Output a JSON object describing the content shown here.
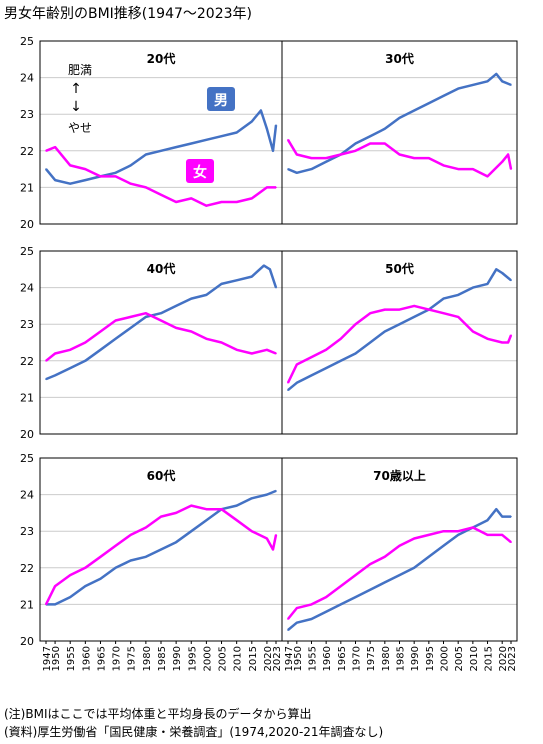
{
  "title": "男女年齢別のBMI推移(1947～2023年)",
  "notes": [
    "(注)BMIはここでは平均体重と平均身長のデータから算出",
    "(資料)厚生労働省「国民健康・栄養調査」(1974,2020-21年調査なし)"
  ],
  "legend_hint": {
    "up": "肥満",
    "up_arrow": "↑",
    "down_arrow": "↓",
    "down": "やせ"
  },
  "colors": {
    "male": "#4472c4",
    "female": "#ff00ff",
    "grid": "#cccccc",
    "axis": "#000000"
  },
  "x_ticks": [
    "1947",
    "1950",
    "1955",
    "1960",
    "1965",
    "1970",
    "1975",
    "1980",
    "1985",
    "1990",
    "1995",
    "2000",
    "2005",
    "2010",
    "2015",
    "2020",
    "2023"
  ],
  "chart_data": [
    {
      "type": "line",
      "title": "20代",
      "ylim": [
        20,
        25
      ],
      "yticks": [
        20,
        21,
        22,
        23,
        24,
        25
      ],
      "x_range": [
        1947,
        2023
      ],
      "series": [
        {
          "name": "男",
          "key": "male",
          "points": [
            [
              1947,
              21.5
            ],
            [
              1950,
              21.2
            ],
            [
              1955,
              21.1
            ],
            [
              1960,
              21.2
            ],
            [
              1965,
              21.3
            ],
            [
              1970,
              21.4
            ],
            [
              1975,
              21.6
            ],
            [
              1980,
              21.9
            ],
            [
              1985,
              22.0
            ],
            [
              1990,
              22.1
            ],
            [
              1995,
              22.2
            ],
            [
              2000,
              22.3
            ],
            [
              2005,
              22.4
            ],
            [
              2010,
              22.5
            ],
            [
              2015,
              22.8
            ],
            [
              2018,
              23.1
            ],
            [
              2020,
              22.6
            ],
            [
              2022,
              22.0
            ],
            [
              2023,
              22.7
            ]
          ]
        },
        {
          "name": "女",
          "key": "female",
          "points": [
            [
              1947,
              22.0
            ],
            [
              1950,
              22.1
            ],
            [
              1955,
              21.6
            ],
            [
              1960,
              21.5
            ],
            [
              1965,
              21.3
            ],
            [
              1970,
              21.3
            ],
            [
              1975,
              21.1
            ],
            [
              1980,
              21.0
            ],
            [
              1985,
              20.8
            ],
            [
              1990,
              20.6
            ],
            [
              1995,
              20.7
            ],
            [
              2000,
              20.5
            ],
            [
              2005,
              20.6
            ],
            [
              2010,
              20.6
            ],
            [
              2015,
              20.7
            ],
            [
              2020,
              21.0
            ],
            [
              2023,
              21.0
            ]
          ]
        }
      ]
    },
    {
      "type": "line",
      "title": "30代",
      "ylim": [
        20,
        25
      ],
      "yticks": [
        20,
        21,
        22,
        23,
        24,
        25
      ],
      "x_range": [
        1947,
        2023
      ],
      "series": [
        {
          "key": "male",
          "points": [
            [
              1947,
              21.5
            ],
            [
              1950,
              21.4
            ],
            [
              1955,
              21.5
            ],
            [
              1960,
              21.7
            ],
            [
              1965,
              21.9
            ],
            [
              1970,
              22.2
            ],
            [
              1975,
              22.4
            ],
            [
              1980,
              22.6
            ],
            [
              1985,
              22.9
            ],
            [
              1990,
              23.1
            ],
            [
              1995,
              23.3
            ],
            [
              2000,
              23.5
            ],
            [
              2005,
              23.7
            ],
            [
              2010,
              23.8
            ],
            [
              2015,
              23.9
            ],
            [
              2018,
              24.1
            ],
            [
              2020,
              23.9
            ],
            [
              2023,
              23.8
            ]
          ]
        },
        {
          "key": "female",
          "points": [
            [
              1947,
              22.3
            ],
            [
              1950,
              21.9
            ],
            [
              1955,
              21.8
            ],
            [
              1960,
              21.8
            ],
            [
              1965,
              21.9
            ],
            [
              1970,
              22.0
            ],
            [
              1975,
              22.2
            ],
            [
              1980,
              22.2
            ],
            [
              1985,
              21.9
            ],
            [
              1990,
              21.8
            ],
            [
              1995,
              21.8
            ],
            [
              2000,
              21.6
            ],
            [
              2005,
              21.5
            ],
            [
              2010,
              21.5
            ],
            [
              2015,
              21.3
            ],
            [
              2020,
              21.7
            ],
            [
              2022,
              21.9
            ],
            [
              2023,
              21.5
            ]
          ]
        }
      ]
    },
    {
      "type": "line",
      "title": "40代",
      "ylim": [
        20,
        25
      ],
      "yticks": [
        20,
        21,
        22,
        23,
        24,
        25
      ],
      "x_range": [
        1947,
        2023
      ],
      "series": [
        {
          "key": "male",
          "points": [
            [
              1947,
              21.5
            ],
            [
              1950,
              21.6
            ],
            [
              1955,
              21.8
            ],
            [
              1960,
              22.0
            ],
            [
              1965,
              22.3
            ],
            [
              1970,
              22.6
            ],
            [
              1975,
              22.9
            ],
            [
              1980,
              23.2
            ],
            [
              1985,
              23.3
            ],
            [
              1990,
              23.5
            ],
            [
              1995,
              23.7
            ],
            [
              2000,
              23.8
            ],
            [
              2005,
              24.1
            ],
            [
              2010,
              24.2
            ],
            [
              2015,
              24.3
            ],
            [
              2019,
              24.6
            ],
            [
              2021,
              24.5
            ],
            [
              2023,
              24.0
            ]
          ]
        },
        {
          "key": "female",
          "points": [
            [
              1947,
              22.0
            ],
            [
              1950,
              22.2
            ],
            [
              1955,
              22.3
            ],
            [
              1960,
              22.5
            ],
            [
              1965,
              22.8
            ],
            [
              1970,
              23.1
            ],
            [
              1975,
              23.2
            ],
            [
              1980,
              23.3
            ],
            [
              1985,
              23.1
            ],
            [
              1990,
              22.9
            ],
            [
              1995,
              22.8
            ],
            [
              2000,
              22.6
            ],
            [
              2005,
              22.5
            ],
            [
              2010,
              22.3
            ],
            [
              2015,
              22.2
            ],
            [
              2020,
              22.3
            ],
            [
              2023,
              22.2
            ]
          ]
        }
      ]
    },
    {
      "type": "line",
      "title": "50代",
      "ylim": [
        20,
        25
      ],
      "yticks": [
        20,
        21,
        22,
        23,
        24,
        25
      ],
      "x_range": [
        1947,
        2023
      ],
      "series": [
        {
          "key": "male",
          "points": [
            [
              1947,
              21.2
            ],
            [
              1950,
              21.4
            ],
            [
              1955,
              21.6
            ],
            [
              1960,
              21.8
            ],
            [
              1965,
              22.0
            ],
            [
              1970,
              22.2
            ],
            [
              1975,
              22.5
            ],
            [
              1980,
              22.8
            ],
            [
              1985,
              23.0
            ],
            [
              1990,
              23.2
            ],
            [
              1995,
              23.4
            ],
            [
              2000,
              23.7
            ],
            [
              2005,
              23.8
            ],
            [
              2010,
              24.0
            ],
            [
              2015,
              24.1
            ],
            [
              2018,
              24.5
            ],
            [
              2020,
              24.4
            ],
            [
              2023,
              24.2
            ]
          ]
        },
        {
          "key": "female",
          "points": [
            [
              1947,
              21.4
            ],
            [
              1950,
              21.9
            ],
            [
              1955,
              22.1
            ],
            [
              1960,
              22.3
            ],
            [
              1965,
              22.6
            ],
            [
              1970,
              23.0
            ],
            [
              1975,
              23.3
            ],
            [
              1980,
              23.4
            ],
            [
              1985,
              23.4
            ],
            [
              1990,
              23.5
            ],
            [
              1995,
              23.4
            ],
            [
              2000,
              23.3
            ],
            [
              2005,
              23.2
            ],
            [
              2010,
              22.8
            ],
            [
              2015,
              22.6
            ],
            [
              2020,
              22.5
            ],
            [
              2022,
              22.5
            ],
            [
              2023,
              22.7
            ]
          ]
        }
      ]
    },
    {
      "type": "line",
      "title": "60代",
      "ylim": [
        20,
        25
      ],
      "yticks": [
        20,
        21,
        22,
        23,
        24,
        25
      ],
      "x_range": [
        1947,
        2023
      ],
      "series": [
        {
          "key": "male",
          "points": [
            [
              1947,
              21.0
            ],
            [
              1950,
              21.0
            ],
            [
              1955,
              21.2
            ],
            [
              1960,
              21.5
            ],
            [
              1965,
              21.7
            ],
            [
              1970,
              22.0
            ],
            [
              1975,
              22.2
            ],
            [
              1980,
              22.3
            ],
            [
              1985,
              22.5
            ],
            [
              1990,
              22.7
            ],
            [
              1995,
              23.0
            ],
            [
              2000,
              23.3
            ],
            [
              2005,
              23.6
            ],
            [
              2010,
              23.7
            ],
            [
              2015,
              23.9
            ],
            [
              2020,
              24.0
            ],
            [
              2023,
              24.1
            ]
          ]
        },
        {
          "key": "female",
          "points": [
            [
              1947,
              21.0
            ],
            [
              1950,
              21.5
            ],
            [
              1955,
              21.8
            ],
            [
              1960,
              22.0
            ],
            [
              1965,
              22.3
            ],
            [
              1970,
              22.6
            ],
            [
              1975,
              22.9
            ],
            [
              1980,
              23.1
            ],
            [
              1985,
              23.4
            ],
            [
              1990,
              23.5
            ],
            [
              1995,
              23.7
            ],
            [
              2000,
              23.6
            ],
            [
              2005,
              23.6
            ],
            [
              2010,
              23.3
            ],
            [
              2015,
              23.0
            ],
            [
              2020,
              22.8
            ],
            [
              2022,
              22.5
            ],
            [
              2023,
              22.9
            ]
          ]
        }
      ]
    },
    {
      "type": "line",
      "title": "70歳以上",
      "ylim": [
        20,
        25
      ],
      "yticks": [
        20,
        21,
        22,
        23,
        24,
        25
      ],
      "x_range": [
        1947,
        2023
      ],
      "series": [
        {
          "key": "male",
          "points": [
            [
              1947,
              20.3
            ],
            [
              1950,
              20.5
            ],
            [
              1955,
              20.6
            ],
            [
              1960,
              20.8
            ],
            [
              1965,
              21.0
            ],
            [
              1970,
              21.2
            ],
            [
              1975,
              21.4
            ],
            [
              1980,
              21.6
            ],
            [
              1985,
              21.8
            ],
            [
              1990,
              22.0
            ],
            [
              1995,
              22.3
            ],
            [
              2000,
              22.6
            ],
            [
              2005,
              22.9
            ],
            [
              2010,
              23.1
            ],
            [
              2015,
              23.3
            ],
            [
              2018,
              23.6
            ],
            [
              2020,
              23.4
            ],
            [
              2023,
              23.4
            ]
          ]
        },
        {
          "key": "female",
          "points": [
            [
              1947,
              20.6
            ],
            [
              1950,
              20.9
            ],
            [
              1955,
              21.0
            ],
            [
              1960,
              21.2
            ],
            [
              1965,
              21.5
            ],
            [
              1970,
              21.8
            ],
            [
              1975,
              22.1
            ],
            [
              1980,
              22.3
            ],
            [
              1985,
              22.6
            ],
            [
              1990,
              22.8
            ],
            [
              1995,
              22.9
            ],
            [
              2000,
              23.0
            ],
            [
              2005,
              23.0
            ],
            [
              2010,
              23.1
            ],
            [
              2015,
              22.9
            ],
            [
              2020,
              22.9
            ],
            [
              2023,
              22.7
            ]
          ]
        }
      ]
    }
  ]
}
